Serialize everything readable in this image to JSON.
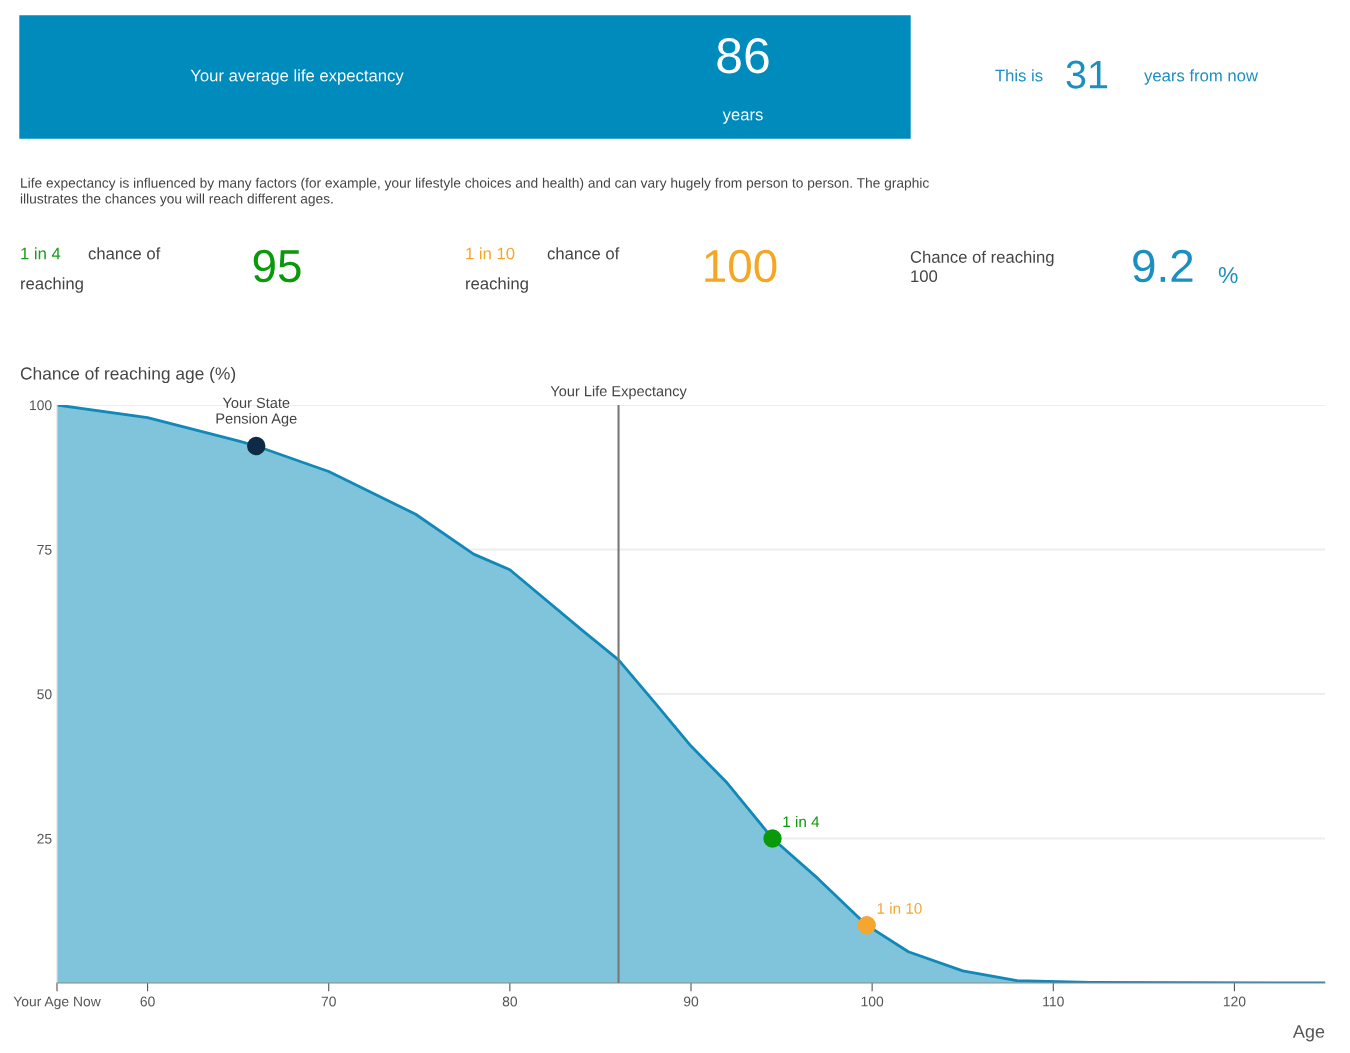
{
  "chart_data": [
    {
      "type": "other",
      "annotations": [
        "Your average life expectancy",
        "86",
        "years",
        "This is",
        "31",
        "years from now",
        "Life expectancy is influenced by many factors (for example, your lifestyle choices and health) and can vary hugely from person to person. The graphic\nillustrates the chances you will reach different ages.",
        "1 in 4",
        "chance of",
        "reaching",
        "95",
        "1 in 10",
        "chance of",
        "reaching",
        "100",
        "Chance of reaching\n100",
        "9.2",
        "%"
      ]
    },
    {
      "type": "area",
      "ylabel": "Chance of reaching age (%)",
      "xlabel": "Age",
      "xlim": [
        55,
        125
      ],
      "xticks": [
        {
          "value": 55,
          "label": "Your Age Now"
        },
        60,
        70,
        80,
        90,
        100,
        110,
        120
      ],
      "ylim": [
        0,
        100
      ],
      "yticks": [
        25,
        50,
        75,
        100
      ],
      "grid": "y",
      "legend": false,
      "series": [
        {
          "type": "area",
          "color": "#1188b8",
          "x": [
            55,
            60,
            65,
            66,
            70,
            74.8,
            78,
            80,
            84,
            86,
            88,
            90,
            92,
            94.5,
            97,
            99.7,
            102,
            105,
            108,
            112,
            125
          ],
          "values": [
            100,
            97.8,
            93.8,
            92.9,
            88.5,
            81.1,
            74.2,
            71.5,
            61,
            55.9,
            48.5,
            41,
            34.6,
            25,
            18.1,
            10,
            5.4,
            2.1,
            0.4,
            0.1,
            0
          ]
        },
        {
          "type": "scatter",
          "color": "#0d2b45",
          "x": [
            66
          ],
          "values": [
            92.9
          ]
        },
        {
          "type": "scatter",
          "color": "#0a990a",
          "x": [
            94.5
          ],
          "values": [
            25
          ]
        },
        {
          "type": "scatter",
          "color": "#f5a62e",
          "x": [
            99.7
          ],
          "values": [
            10
          ]
        }
      ],
      "ref_lines": [
        {
          "axis": "x",
          "value": 86,
          "label": "Your Life Expectancy",
          "color": "#777777"
        }
      ],
      "annotations": [
        {
          "text": "Your State\nPension Age",
          "x": 66,
          "y": 92.9
        },
        {
          "text": "1 in 4",
          "x": 94.5,
          "y": 25
        },
        {
          "text": "1 in 10",
          "x": 99.7,
          "y": 10
        }
      ]
    }
  ]
}
